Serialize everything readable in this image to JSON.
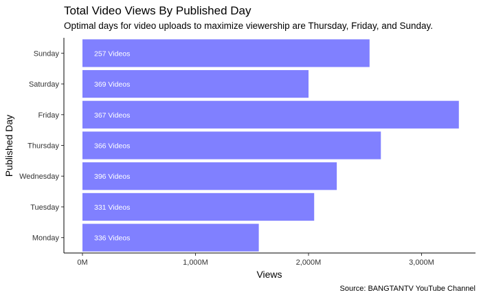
{
  "chart_data": {
    "type": "bar",
    "orientation": "horizontal",
    "title": "Total Video Views By Published Day",
    "subtitle": "Optimal days for video uploads to maximize viewership are Thursday, Friday, and Sunday.",
    "xlabel": "Views",
    "ylabel": "Published Day",
    "caption": "Source: BANGTANTV YouTube Channel",
    "categories": [
      "Monday",
      "Tuesday",
      "Wednesday",
      "Thursday",
      "Friday",
      "Saturday",
      "Sunday"
    ],
    "values": [
      1560,
      2050,
      2250,
      2640,
      3330,
      2000,
      2540
    ],
    "value_unit": "M",
    "bar_labels": [
      "336 Videos",
      "331 Videos",
      "396 Videos",
      "366 Videos",
      "367 Videos",
      "369 Videos",
      "257 Videos"
    ],
    "xlim": [
      0,
      3400
    ],
    "x_ticks": [
      0,
      1000,
      2000,
      3000
    ],
    "x_tick_labels": [
      "0M",
      "1,000M",
      "2,000M",
      "3,000M"
    ],
    "grid": false,
    "bar_color": "#8080FF"
  }
}
